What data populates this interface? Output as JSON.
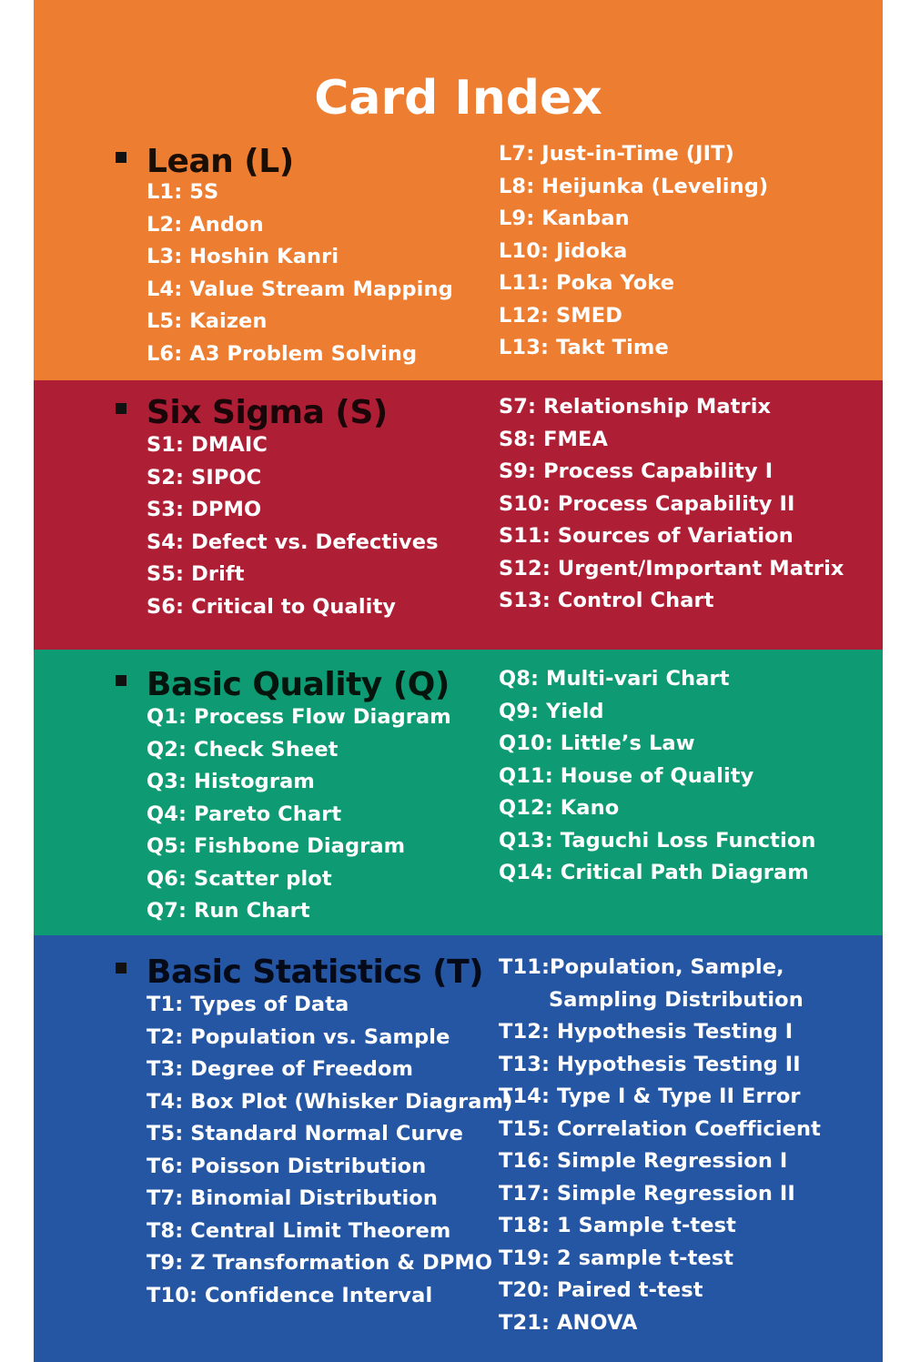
{
  "title": "Card Index",
  "colors": {
    "lean": "#ED7D31",
    "six_sigma": "#AE1F36",
    "basic_quality": "#0E9A72",
    "basic_statistics": "#2556A3"
  },
  "sections": {
    "lean": {
      "heading": "Lean (L)",
      "left": [
        "L1: 5S",
        "L2: Andon",
        "L3: Hoshin Kanri",
        "L4: Value Stream Mapping",
        "L5: Kaizen",
        "L6: A3 Problem Solving"
      ],
      "right": [
        "L7: Just-in-Time (JIT)",
        "L8: Heijunka (Leveling)",
        "L9: Kanban",
        "L10: Jidoka",
        "L11: Poka Yoke",
        "L12: SMED",
        "L13: Takt Time"
      ]
    },
    "six_sigma": {
      "heading": "Six Sigma (S)",
      "left": [
        "S1: DMAIC",
        "S2: SIPOC",
        "S3: DPMO",
        "S4: Defect vs. Defectives",
        "S5: Drift",
        "S6: Critical to Quality"
      ],
      "right": [
        "S7: Relationship Matrix",
        "S8: FMEA",
        "S9: Process Capability I",
        "S10: Process Capability II",
        "S11: Sources of Variation",
        "S12: Urgent/Important Matrix",
        "S13: Control Chart"
      ]
    },
    "basic_quality": {
      "heading": "Basic Quality (Q)",
      "left": [
        "Q1: Process Flow Diagram",
        "Q2: Check Sheet",
        "Q3: Histogram",
        "Q4: Pareto Chart",
        "Q5: Fishbone Diagram",
        "Q6: Scatter plot",
        "Q7: Run Chart"
      ],
      "right": [
        "Q8: Multi-vari Chart",
        "Q9: Yield",
        "Q10: Little’s Law",
        "Q11: House of Quality",
        "Q12: Kano",
        "Q13: Taguchi Loss Function",
        "Q14: Critical Path Diagram"
      ]
    },
    "basic_statistics": {
      "heading": "Basic Statistics (T)",
      "left": [
        "T1: Types of Data",
        "T2: Population vs. Sample",
        "T3: Degree of Freedom",
        "T4: Box Plot (Whisker Diagram)",
        "T5: Standard Normal Curve",
        "T6: Poisson Distribution",
        "T7: Binomial Distribution",
        "T8: Central Limit Theorem",
        "T9: Z Transformation & DPMO",
        "T10: Confidence Interval"
      ],
      "right": [
        "T11:Population, Sample,",
        "Sampling Distribution",
        "T12: Hypothesis Testing I",
        "T13: Hypothesis Testing II",
        "T14: Type I & Type II Error",
        "T15: Correlation Coefficient",
        "T16: Simple Regression I",
        "T17: Simple Regression II",
        "T18: 1 Sample t-test",
        "T19: 2 sample t-test",
        "T20: Paired  t-test",
        "T21: ANOVA"
      ]
    }
  }
}
